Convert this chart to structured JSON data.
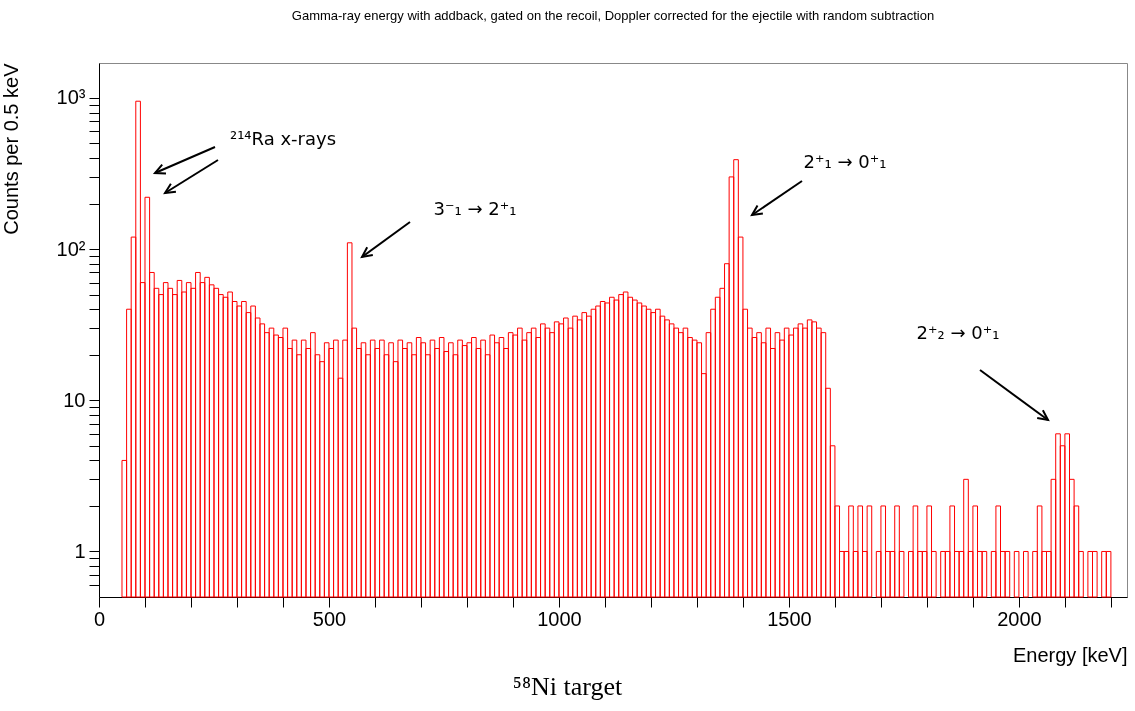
{
  "chart_data": {
    "type": "histogram",
    "title": "Gamma-ray energy with addback, gated on the recoil, Doppler corrected for the ejectile with random subtraction",
    "xlabel": "Energy [keV]",
    "ylabel": "Counts per 0.5 keV",
    "color": "#ff0000",
    "log": true,
    "xlim": [
      0,
      2235
    ],
    "ylim": [
      0.5,
      1700
    ],
    "xticks": [
      0,
      {
        "value": 100,
        "label": null
      },
      {
        "value": 200,
        "label": null
      },
      {
        "value": 300,
        "label": null
      },
      {
        "value": 400,
        "label": null
      },
      500,
      {
        "value": 600,
        "label": null
      },
      {
        "value": 700,
        "label": null
      },
      {
        "value": 800,
        "label": null
      },
      {
        "value": 900,
        "label": null
      },
      1000,
      {
        "value": 1100,
        "label": null
      },
      {
        "value": 1200,
        "label": null
      },
      {
        "value": 1300,
        "label": null
      },
      {
        "value": 1400,
        "label": null
      },
      1500,
      {
        "value": 1600,
        "label": null
      },
      {
        "value": 1700,
        "label": null
      },
      {
        "value": 1800,
        "label": null
      },
      {
        "value": 1900,
        "label": null
      },
      2000,
      {
        "value": 2100,
        "label": null
      },
      {
        "value": 2200,
        "label": null
      }
    ],
    "yticks": [
      {
        "value": 0.6,
        "label": null
      },
      {
        "value": 0.7,
        "label": null
      },
      {
        "value": 0.8,
        "label": null
      },
      {
        "value": 0.9,
        "label": null
      },
      1,
      {
        "value": 2,
        "label": null
      },
      {
        "value": 3,
        "label": null
      },
      {
        "value": 4,
        "label": null
      },
      {
        "value": 5,
        "label": null
      },
      {
        "value": 6,
        "label": null
      },
      {
        "value": 7,
        "label": null
      },
      {
        "value": 8,
        "label": null
      },
      {
        "value": 9,
        "label": null
      },
      10,
      {
        "value": 20,
        "label": null
      },
      {
        "value": 30,
        "label": null
      },
      {
        "value": 40,
        "label": null
      },
      {
        "value": 50,
        "label": null
      },
      {
        "value": 60,
        "label": null
      },
      {
        "value": 70,
        "label": null
      },
      {
        "value": 80,
        "label": null
      },
      {
        "value": 90,
        "label": null
      },
      {
        "value": 100,
        "label": "10²"
      },
      {
        "value": 200,
        "label": null
      },
      {
        "value": 300,
        "label": null
      },
      {
        "value": 400,
        "label": null
      },
      {
        "value": 500,
        "label": null
      },
      {
        "value": 600,
        "label": null
      },
      {
        "value": 700,
        "label": null
      },
      {
        "value": 800,
        "label": null
      },
      {
        "value": 900,
        "label": null
      },
      {
        "value": 1000,
        "label": "10³"
      }
    ],
    "bins": [
      50,
      60,
      70,
      80,
      90,
      100,
      110,
      120,
      130,
      140,
      150,
      160,
      170,
      180,
      190,
      200,
      210,
      220,
      230,
      240,
      250,
      260,
      270,
      280,
      290,
      300,
      310,
      320,
      330,
      340,
      350,
      360,
      370,
      380,
      390,
      400,
      410,
      420,
      430,
      440,
      450,
      460,
      470,
      480,
      490,
      500,
      510,
      520,
      530,
      540,
      550,
      560,
      570,
      580,
      590,
      600,
      610,
      620,
      630,
      640,
      650,
      660,
      670,
      680,
      690,
      700,
      710,
      720,
      730,
      740,
      750,
      760,
      770,
      780,
      790,
      800,
      810,
      820,
      830,
      840,
      850,
      860,
      870,
      880,
      890,
      900,
      910,
      920,
      930,
      940,
      950,
      960,
      970,
      980,
      990,
      1000,
      1010,
      1020,
      1030,
      1040,
      1050,
      1060,
      1070,
      1080,
      1090,
      1100,
      1110,
      1120,
      1130,
      1140,
      1150,
      1160,
      1170,
      1180,
      1190,
      1200,
      1210,
      1220,
      1230,
      1240,
      1250,
      1260,
      1270,
      1280,
      1290,
      1300,
      1310,
      1320,
      1330,
      1340,
      1350,
      1360,
      1370,
      1380,
      1390,
      1400,
      1410,
      1420,
      1430,
      1440,
      1450,
      1460,
      1470,
      1480,
      1490,
      1500,
      1510,
      1520,
      1530,
      1540,
      1550,
      1560,
      1570,
      1580,
      1590,
      1600,
      1610,
      1620,
      1630,
      1640,
      1650,
      1660,
      1670,
      1680,
      1690,
      1700,
      1710,
      1720,
      1730,
      1740,
      1750,
      1760,
      1770,
      1780,
      1790,
      1800,
      1810,
      1820,
      1830,
      1840,
      1850,
      1860,
      1870,
      1880,
      1890,
      1900,
      1910,
      1920,
      1930,
      1940,
      1950,
      1960,
      1970,
      1980,
      1990,
      2000,
      2010,
      2020,
      2030,
      2040,
      2050,
      2060,
      2070,
      2080,
      2090,
      2100,
      2110,
      2120,
      2130,
      2140,
      2150,
      2160,
      2170,
      2180,
      2190,
      2200
    ],
    "values": [
      4,
      40,
      120,
      950,
      60,
      220,
      70,
      55,
      50,
      60,
      55,
      50,
      62,
      52,
      60,
      55,
      70,
      60,
      65,
      58,
      55,
      50,
      48,
      52,
      45,
      42,
      45,
      38,
      42,
      35,
      32,
      28,
      30,
      27,
      26,
      30,
      22,
      25,
      20,
      25,
      22,
      28,
      20,
      18,
      24,
      22,
      25,
      14,
      25,
      110,
      30,
      22,
      24,
      20,
      25,
      22,
      25,
      20,
      24,
      18,
      25,
      22,
      24,
      20,
      26,
      24,
      20,
      25,
      22,
      26,
      21,
      24,
      20,
      25,
      23,
      24,
      26,
      22,
      25,
      20,
      27,
      24,
      26,
      22,
      28,
      27,
      30,
      25,
      28,
      30,
      26,
      32,
      30,
      28,
      33,
      32,
      35,
      30,
      36,
      34,
      38,
      36,
      40,
      42,
      45,
      44,
      48,
      46,
      50,
      52,
      48,
      46,
      44,
      42,
      40,
      38,
      40,
      36,
      34,
      32,
      30,
      28,
      30,
      26,
      25,
      24,
      15,
      28,
      40,
      48,
      55,
      80,
      300,
      390,
      120,
      40,
      30,
      26,
      28,
      24,
      30,
      22,
      28,
      25,
      30,
      27,
      30,
      32,
      30,
      34,
      33,
      30,
      28,
      12,
      5,
      2,
      1,
      1,
      2,
      1,
      2,
      1,
      2,
      null,
      1,
      2,
      1,
      1,
      2,
      1,
      null,
      1,
      2,
      1,
      1,
      2,
      1,
      null,
      1,
      1,
      2,
      1,
      1,
      3,
      1,
      2,
      1,
      1,
      null,
      1,
      2,
      1,
      1,
      null,
      1,
      null,
      1,
      null,
      1,
      2,
      1,
      1,
      3,
      6,
      5,
      6,
      3,
      2,
      1,
      null,
      1,
      1,
      null,
      1,
      1
    ],
    "annotations": [
      "²¹⁴Ra x-rays",
      "3⁻₁ → 2⁺₁",
      "2⁺₁ → 0⁺₁",
      "2⁺₂ → 0⁺₁",
      "⁵⁸Ni target"
    ]
  }
}
